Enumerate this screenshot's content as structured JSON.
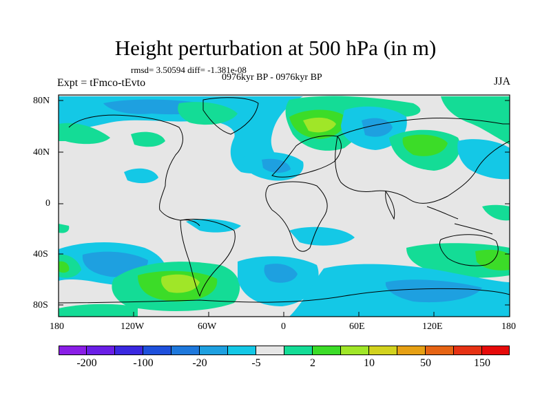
{
  "title": "Height perturbation at 500 hPa (in m)",
  "stats": "rmsd= 3.50594 diff= -1.381e-08",
  "subtitle": "0976kyr BP - 0976kyr BP",
  "expt": "Expt = tFmco-tEvto",
  "season": "JJA",
  "y_ticks": [
    "80N",
    "40N",
    "0",
    "40S",
    "80S"
  ],
  "x_ticks": [
    "180",
    "120W",
    "60W",
    "0",
    "60E",
    "120E",
    "180"
  ],
  "colorbar": {
    "colors": [
      "#8a1ee6",
      "#6a1ee6",
      "#3a28e0",
      "#1e50dc",
      "#1e78dc",
      "#1ea0e0",
      "#14c8e6",
      "#e6e6e6",
      "#14dc96",
      "#3cdc28",
      "#a0e628",
      "#d2d21e",
      "#e6a014",
      "#e66414",
      "#e63214",
      "#e60a0a"
    ],
    "labels": [
      "-200",
      "-100",
      "-20",
      "-5",
      "2",
      "10",
      "50",
      "150"
    ]
  },
  "colors": {
    "background": "#e6e6e6",
    "coast": "#000000"
  }
}
